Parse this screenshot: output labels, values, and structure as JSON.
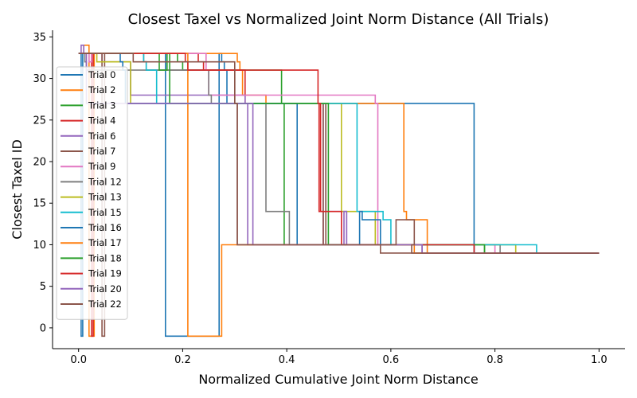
{
  "chart_data": {
    "type": "line",
    "title": "Closest Taxel vs Normalized Joint Norm Distance (All Trials)",
    "xlabel": "Normalized Cumulative Joint Norm Distance",
    "ylabel": "Closest Taxel ID",
    "xlim": [
      -0.05,
      1.05
    ],
    "ylim": [
      -2.5,
      35.8
    ],
    "xticks": [
      0.0,
      0.2,
      0.4,
      0.6,
      0.8,
      1.0
    ],
    "xtick_labels": [
      "0.0",
      "0.2",
      "0.4",
      "0.6",
      "0.8",
      "1.0"
    ],
    "yticks": [
      0,
      5,
      10,
      15,
      20,
      25,
      30,
      35
    ],
    "ytick_labels": [
      "0",
      "5",
      "10",
      "15",
      "20",
      "25",
      "30",
      "35"
    ],
    "grid": false,
    "legend_position": "upper-left",
    "step": true,
    "series": [
      {
        "name": "Trial 0",
        "color": "#1f77b4",
        "x": [
          0,
          0.005,
          0.008,
          0.01,
          0.165,
          0.167,
          0.27,
          0.275,
          0.28,
          0.285,
          0.76,
          1.0
        ],
        "y": [
          33,
          -1,
          33,
          33,
          33,
          -1,
          33,
          32,
          31,
          27,
          9,
          9
        ]
      },
      {
        "name": "Trial 2",
        "color": "#ff7f0e",
        "x": [
          0,
          0.01,
          0.02,
          0.03,
          0.3,
          0.305,
          0.31,
          0.315,
          0.36,
          0.62,
          0.625,
          0.63,
          0.67,
          0.85,
          1.0
        ],
        "y": [
          33,
          34,
          -1,
          33,
          33,
          32,
          31,
          28,
          27,
          27,
          14,
          13,
          9,
          9,
          9
        ]
      },
      {
        "name": "Trial 3",
        "color": "#2ca02c",
        "x": [
          0,
          0.02,
          0.03,
          0.18,
          0.19,
          0.2,
          0.39,
          0.395,
          0.78,
          1.0
        ],
        "y": [
          33,
          33,
          33,
          33,
          32,
          31,
          27,
          10,
          9,
          9
        ]
      },
      {
        "name": "Trial 4",
        "color": "#d62728",
        "x": [
          0,
          0.025,
          0.028,
          0.03,
          0.22,
          0.23,
          0.24,
          0.32,
          0.46,
          0.462,
          0.47,
          0.76,
          1.0
        ],
        "y": [
          33,
          -1,
          33,
          33,
          33,
          32,
          31,
          27,
          27,
          14,
          10,
          9,
          9
        ]
      },
      {
        "name": "Trial 6",
        "color": "#9467bd",
        "x": [
          0,
          0.04,
          0.045,
          0.1,
          0.11,
          0.32,
          0.325,
          0.47,
          0.475,
          0.51,
          0.515,
          0.66,
          1.0
        ],
        "y": [
          33,
          33,
          32,
          28,
          28,
          27,
          10,
          27,
          14,
          14,
          10,
          9,
          9
        ]
      },
      {
        "name": "Trial 7",
        "color": "#8c564b",
        "x": [
          0,
          0.045,
          0.05,
          0.12,
          0.125,
          0.13,
          0.3,
          0.305,
          0.47,
          0.475,
          0.58,
          1.0
        ],
        "y": [
          33,
          -1,
          33,
          33,
          32,
          31,
          27,
          10,
          27,
          10,
          9,
          9
        ]
      },
      {
        "name": "Trial 9",
        "color": "#e377c2",
        "x": [
          0,
          0.02,
          0.025,
          0.24,
          0.245,
          0.25,
          0.57,
          0.575,
          0.8,
          1.0
        ],
        "y": [
          33,
          32,
          33,
          33,
          31,
          28,
          27,
          10,
          9,
          9
        ]
      },
      {
        "name": "Trial 12",
        "color": "#7f7f7f",
        "x": [
          0,
          0.01,
          0.012,
          0.015,
          0.25,
          0.255,
          0.355,
          0.36,
          0.4,
          0.405,
          0.81,
          1.0
        ],
        "y": [
          33,
          33,
          32,
          31,
          28,
          27,
          27,
          14,
          14,
          10,
          9,
          9
        ]
      },
      {
        "name": "Trial 13",
        "color": "#bcbd22",
        "x": [
          0,
          0.03,
          0.035,
          0.1,
          0.5,
          0.505,
          0.565,
          0.57,
          0.84,
          1.0
        ],
        "y": [
          33,
          33,
          32,
          27,
          27,
          14,
          14,
          10,
          9,
          9
        ]
      },
      {
        "name": "Trial 15",
        "color": "#17becf",
        "x": [
          0,
          0.12,
          0.125,
          0.13,
          0.145,
          0.15,
          0.53,
          0.535,
          0.58,
          0.585,
          0.59,
          0.6,
          0.88,
          1.0
        ],
        "y": [
          33,
          33,
          32,
          31,
          31,
          27,
          27,
          14,
          14,
          13,
          13,
          10,
          9,
          9
        ]
      },
      {
        "name": "Trial 16",
        "color": "#1f77b4",
        "x": [
          0,
          0.075,
          0.08,
          0.085,
          0.09,
          0.415,
          0.42,
          0.54,
          0.545,
          0.58,
          0.76,
          1.0
        ],
        "y": [
          33,
          33,
          32,
          31,
          27,
          27,
          10,
          14,
          13,
          10,
          9,
          9
        ]
      },
      {
        "name": "Trial 17",
        "color": "#ff7f0e",
        "x": [
          0,
          0.205,
          0.21,
          0.27,
          0.275,
          0.64,
          0.645,
          0.84,
          1.0
        ],
        "y": [
          33,
          33,
          -1,
          -1,
          10,
          10,
          9,
          9,
          9
        ]
      },
      {
        "name": "Trial 18",
        "color": "#2ca02c",
        "x": [
          0,
          0.15,
          0.155,
          0.17,
          0.175,
          0.475,
          0.48,
          0.78,
          1.0
        ],
        "y": [
          33,
          33,
          31,
          33,
          27,
          27,
          10,
          9,
          9
        ]
      },
      {
        "name": "Trial 19",
        "color": "#d62728",
        "x": [
          0,
          0.2,
          0.205,
          0.21,
          0.46,
          0.465,
          0.5,
          0.505,
          0.76,
          1.0
        ],
        "y": [
          33,
          33,
          32,
          31,
          27,
          14,
          14,
          10,
          9,
          9
        ]
      },
      {
        "name": "Trial 20",
        "color": "#9467bd",
        "x": [
          0,
          0.005,
          0.01,
          0.015,
          0.33,
          0.335,
          0.51,
          0.515,
          0.66,
          1.0
        ],
        "y": [
          33,
          34,
          33,
          27,
          27,
          10,
          14,
          10,
          9,
          9
        ]
      },
      {
        "name": "Trial 22",
        "color": "#8c564b",
        "x": [
          0,
          0.1,
          0.105,
          0.3,
          0.305,
          0.61,
          0.615,
          0.64,
          0.645,
          0.64,
          0.645,
          1.0
        ],
        "y": [
          33,
          33,
          32,
          27,
          10,
          13,
          13,
          13,
          10,
          9,
          9,
          9
        ]
      }
    ]
  }
}
